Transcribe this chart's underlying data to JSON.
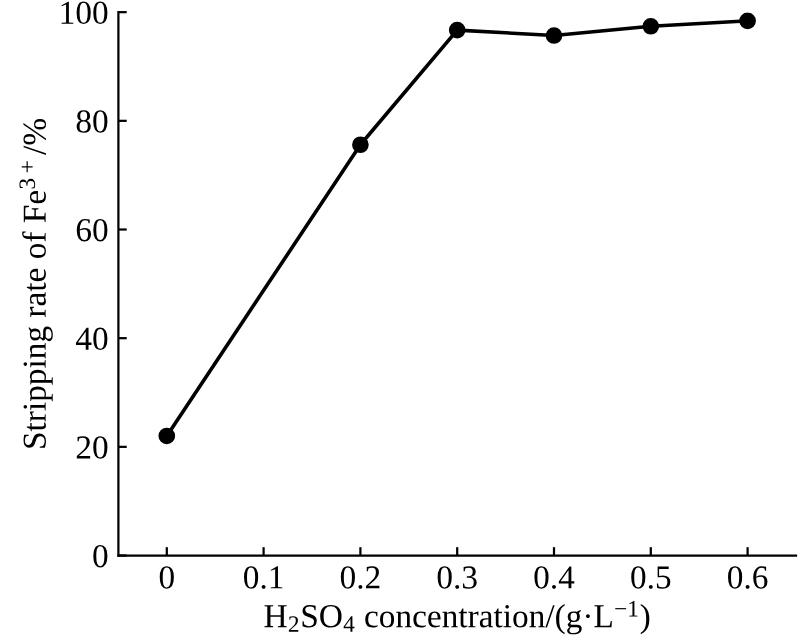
{
  "chart_data": {
    "type": "line",
    "xlabel": "H$_{2}$SO$_{4}$ concentration/(g·L$^{−1}$)",
    "ylabel": "Stripping rate of Fe$^{3+}$/%",
    "x": [
      0,
      0.2,
      0.3,
      0.4,
      0.5,
      0.6
    ],
    "series": [
      {
        "color": "#000000",
        "values": [
          22,
          75.6,
          96.7,
          95.7,
          97.4,
          98.4
        ]
      }
    ],
    "xlim": [
      -0.05,
      0.65
    ],
    "xticks": [
      0,
      0.1,
      0.2,
      0.3,
      0.4,
      0.5,
      0.6
    ],
    "ylim": [
      0,
      100
    ],
    "yticks": [
      0,
      20,
      40,
      60,
      80,
      100
    ],
    "marker": "circle",
    "line_style": "solid"
  }
}
